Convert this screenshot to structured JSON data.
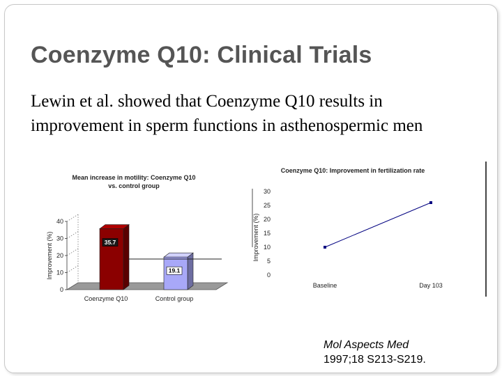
{
  "slide": {
    "title": "Coenzyme Q10: Clinical Trials",
    "body": "Lewin et al. showed that Coenzyme Q10 results in improvement in sperm functions in asthenospermic men",
    "citation": {
      "journal": "Mol Aspects Med",
      "ref": "1997;18 S213-S219."
    }
  },
  "chart_data": [
    {
      "type": "bar",
      "title_line1": "Mean increase in motility: Coenzyme Q10",
      "title_line2": "vs. control group",
      "ylabel": "Improvement (%)",
      "xlabel": "",
      "categories": [
        "Coenzyme Q10",
        "Control group"
      ],
      "values": [
        35.7,
        19.1
      ],
      "value_labels": [
        "35.7",
        "19.1"
      ],
      "ylim": [
        0,
        40
      ],
      "yticks": [
        0,
        10,
        20,
        30,
        40
      ],
      "colors": [
        "#8b0000",
        "#a8a8f8"
      ],
      "grid": false
    },
    {
      "type": "line",
      "title": "Coenzyme Q10: Improvement in fertilization rate",
      "ylabel": "Improvement (%)",
      "xlabel": "",
      "categories": [
        "Baseline",
        "Day 103"
      ],
      "values": [
        10,
        26
      ],
      "ylim": [
        0,
        30
      ],
      "yticks": [
        0,
        5,
        10,
        15,
        20,
        25,
        30
      ],
      "color": "#000080",
      "grid": false
    }
  ]
}
